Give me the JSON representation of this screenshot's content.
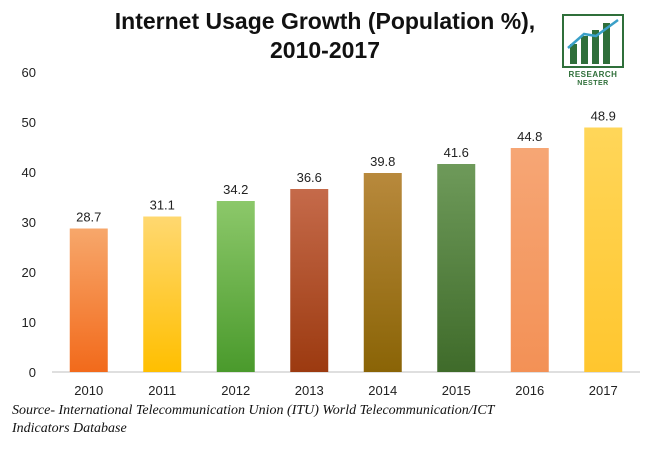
{
  "chart_data": {
    "type": "bar",
    "title": "Internet Usage Growth (Population %),",
    "title_line2": "2010-2017",
    "categories": [
      "2010",
      "2011",
      "2012",
      "2013",
      "2014",
      "2015",
      "2016",
      "2017"
    ],
    "values": [
      28.7,
      31.1,
      34.2,
      36.6,
      39.8,
      41.6,
      44.8,
      48.9
    ],
    "value_labels": [
      "28.7",
      "31.1",
      "34.2",
      "36.6",
      "39.8",
      "41.6",
      "44.8",
      "48.9"
    ],
    "y_ticks": [
      "0",
      "10",
      "20",
      "30",
      "40",
      "50",
      "60"
    ],
    "ylim": [
      0,
      60
    ],
    "xlabel": "",
    "ylabel": "",
    "grid": false,
    "bar_colors": [
      [
        "#f7a76b",
        "#f26a1b"
      ],
      [
        "#ffd870",
        "#ffbf00"
      ],
      [
        "#8cc86a",
        "#4a9a2c"
      ],
      [
        "#c56a4a",
        "#9c3a10"
      ],
      [
        "#b8893c",
        "#8a6406"
      ],
      [
        "#6e9a5a",
        "#3f6b2a"
      ],
      [
        "#f6a675",
        "#f39156"
      ],
      [
        "#ffd659",
        "#ffc62e"
      ]
    ]
  },
  "source": {
    "line1": "Source- International Telecommunication Union (ITU) World Telecommunication/ICT",
    "line2": "Indicators Database"
  },
  "logo": {
    "line1": "RESEARCH",
    "line2": "NESTER",
    "color": "#2f6f3a"
  }
}
